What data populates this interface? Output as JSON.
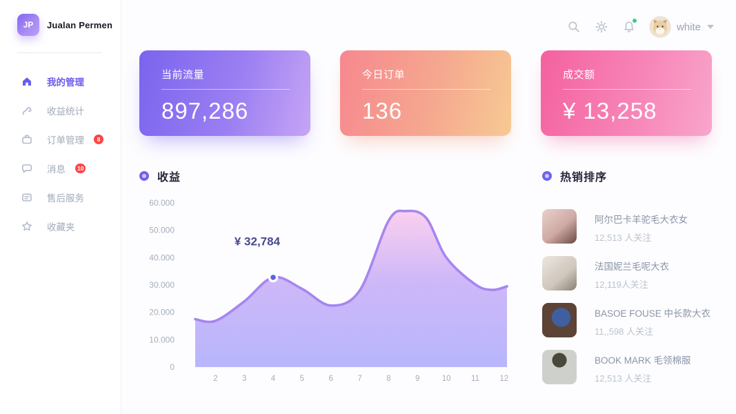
{
  "app": {
    "logo_text": "JP",
    "brand": "Jualan Permen"
  },
  "header": {
    "username": "white",
    "icons": [
      "search-icon",
      "gear-icon",
      "bell-icon"
    ],
    "bell_dot_color": "#35d07f"
  },
  "sidebar": {
    "items": [
      {
        "label": "我的管理",
        "icon": "home-icon",
        "active": true
      },
      {
        "label": "收益统计",
        "icon": "trend-icon"
      },
      {
        "label": "订单管理",
        "icon": "briefcase-icon",
        "badge": "8"
      },
      {
        "label": "消息",
        "icon": "chat-icon",
        "badge": "10"
      },
      {
        "label": "售后服务",
        "icon": "service-card-icon"
      },
      {
        "label": "收藏夹",
        "icon": "star-icon"
      }
    ]
  },
  "cards": [
    {
      "title": "当前流量",
      "value": "897,286",
      "gradient": [
        "#7b64ee",
        "#c6a5f5"
      ]
    },
    {
      "title": "今日订单",
      "value": "136",
      "gradient": [
        "#f7878f",
        "#f7ca93"
      ]
    },
    {
      "title": "成交额",
      "value": "¥ 13,258",
      "gradient": [
        "#f4619f",
        "#f9a6cb"
      ]
    }
  ],
  "chart_data": {
    "type": "area",
    "title": "收益",
    "x": [
      1.3,
      2,
      3,
      4,
      5,
      6,
      7,
      8,
      8.6,
      9.3,
      10,
      11,
      11.6,
      12.1
    ],
    "values": [
      17500,
      16900,
      24000,
      32784,
      28600,
      22500,
      28000,
      53500,
      57000,
      54500,
      40000,
      30200,
      28200,
      29500
    ],
    "x_ticks": [
      {
        "label": "2",
        "m": 2
      },
      {
        "label": "3",
        "m": 3
      },
      {
        "label": "4",
        "m": 4
      },
      {
        "label": "5",
        "m": 5
      },
      {
        "label": "6",
        "m": 6
      },
      {
        "label": "7",
        "m": 7
      },
      {
        "label": "8",
        "m": 8
      },
      {
        "label": "9",
        "m": 9
      },
      {
        "label": "10",
        "m": 10
      },
      {
        "label": "11",
        "m": 11
      },
      {
        "label": "12",
        "m": 12
      }
    ],
    "y_ticks": [
      {
        "label": "60.000",
        "v": 60000
      },
      {
        "label": "50.000",
        "v": 50000
      },
      {
        "label": "40.000",
        "v": 40000
      },
      {
        "label": "30.000",
        "v": 30000
      },
      {
        "label": "20.000",
        "v": 20000
      },
      {
        "label": "10.000",
        "v": 10000
      },
      {
        "label": "0",
        "v": 0
      }
    ],
    "xlim": [
      1.3,
      12.1
    ],
    "ylim": [
      0,
      60000
    ],
    "grid": false,
    "legend": "none",
    "marker": {
      "x": 4,
      "value": 32784,
      "label": "¥ 32,784"
    },
    "colors": {
      "stroke": "#a586ef",
      "fill_top": "#fbcdee",
      "fill_mid": "#cbb4f8",
      "fill_bottom": "#b5b2fc",
      "dot": "#5566d6",
      "annotation": "#47498f",
      "axis": "#a4adbb"
    }
  },
  "hot_list": {
    "title": "热销排序",
    "items": [
      {
        "name": "阿尔巴卡羊驼毛大衣女",
        "count": "12,513 人关注",
        "thumb_style": "background:linear-gradient(140deg,#e8d2cb 0%,#cfa9a4 55%,#6b4a44 100%)"
      },
      {
        "name": "法国妮兰毛呢大衣",
        "count": "12,119人关注",
        "thumb_style": "background:linear-gradient(140deg,#ece7e1 0%,#cfc6bc 60%,#8a7f72 100%)"
      },
      {
        "name": "BASOE FOUSE 中长款大衣",
        "count": "11,,598 人关注",
        "thumb_style": "background:radial-gradient(circle at 55% 42%,#3f5f9e 0 34%,#5c4336 35% 100%)"
      },
      {
        "name": "BOOK MARK 毛领棉服",
        "count": "12,513 人关注",
        "thumb_style": "background:radial-gradient(circle at 50% 30%,#4a483a 0 24%,#ced1cb 25% 100%)"
      }
    ]
  },
  "colors": {
    "accent": "#6a5cee",
    "badge": "#ff4444",
    "sidebar_text": "#a2aab9",
    "title_text": "#26263a"
  }
}
